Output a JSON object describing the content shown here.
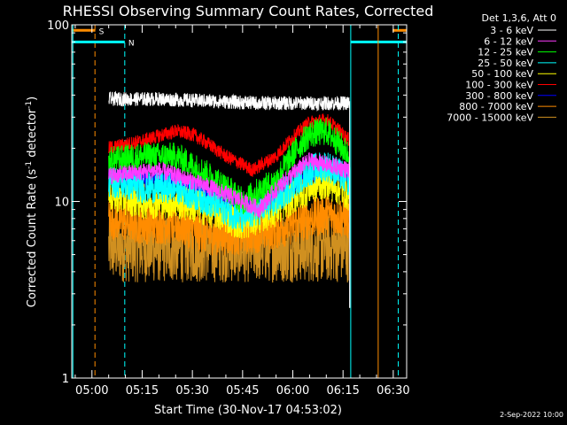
{
  "chart_data": {
    "type": "line",
    "title": "RHESSI Observing Summary Count Rates, Corrected",
    "xlabel": "Start Time (30-Nov-17 04:53:02)",
    "ylabel_main": "Corrected Count Rate (s",
    "ylabel_exp1": "-1",
    "ylabel_mid": " detector",
    "ylabel_exp2": "-1",
    "ylabel_end": ")",
    "ylog": true,
    "ylim": [
      1,
      100
    ],
    "xlim_minutes": [
      -6.03,
      94.0
    ],
    "y_ticks": [
      "1",
      "10",
      "100"
    ],
    "x_ticks": [
      {
        "label": "05:00",
        "t": 0
      },
      {
        "label": "05:15",
        "t": 15
      },
      {
        "label": "05:30",
        "t": 30
      },
      {
        "label": "05:45",
        "t": 45
      },
      {
        "label": "06:00",
        "t": 60
      },
      {
        "label": "06:15",
        "t": 75
      },
      {
        "label": "06:30",
        "t": 90
      }
    ],
    "legend_header": "Det 1,3,6, Att 0",
    "timestamp": "2-Sep-2022 10:00",
    "data_start_min": 5.0,
    "data_end_min": 77.5,
    "series": [
      {
        "name": "3 - 6 keV",
        "color": "#ffffff",
        "t": [
          5,
          20,
          35,
          50,
          65,
          77
        ],
        "y": [
          38,
          38,
          37,
          36,
          36,
          36
        ],
        "noise": 0.04
      },
      {
        "name": "6 - 12 keV",
        "color": "#ff3cff",
        "t": [
          5,
          20,
          35,
          50,
          65,
          77
        ],
        "y": [
          14,
          15,
          12,
          9,
          17,
          15
        ],
        "noise": 0.05
      },
      {
        "name": "12 - 25 keV",
        "color": "#00ff00",
        "t": [
          5,
          15,
          25,
          35,
          45,
          55,
          65,
          70,
          77
        ],
        "y": [
          17,
          18,
          18,
          14,
          10,
          13,
          24,
          25,
          18
        ],
        "noise": 0.08
      },
      {
        "name": "25 - 50 keV",
        "color": "#00ffff",
        "t": [
          5,
          15,
          25,
          35,
          45,
          55,
          65,
          70,
          77
        ],
        "y": [
          13,
          12,
          12,
          10,
          8,
          10,
          15,
          16,
          13
        ],
        "noise": 0.09
      },
      {
        "name": "50 - 100 keV",
        "color": "#ffff00",
        "t": [
          5,
          15,
          25,
          35,
          45,
          55,
          65,
          70,
          77
        ],
        "y": [
          11,
          10,
          10,
          9,
          7.5,
          9,
          12,
          13,
          11
        ],
        "noise": 0.1
      },
      {
        "name": "100 - 300 keV",
        "color": "#ff0000",
        "t": [
          5,
          15,
          25,
          30,
          40,
          48,
          55,
          65,
          70,
          77
        ],
        "y": [
          20,
          22,
          25,
          24,
          18,
          15,
          18,
          28,
          29,
          22
        ],
        "noise": 0.04
      },
      {
        "name": "300 - 800 keV",
        "color": "#0000ff",
        "t": [
          5,
          15,
          25,
          35,
          45,
          55,
          65,
          70,
          77
        ],
        "y": [
          14,
          13,
          13,
          11,
          9,
          10,
          14,
          15,
          14
        ],
        "noise": 0.05
      },
      {
        "name": "800 - 7000 keV",
        "color": "#ff8c00",
        "t": [
          5,
          15,
          25,
          35,
          45,
          55,
          65,
          70,
          77
        ],
        "y": [
          8,
          7.5,
          7.5,
          6.5,
          6.5,
          7,
          8,
          8.5,
          8
        ],
        "noise": 0.12
      },
      {
        "name": "7000 - 15000 keV",
        "color": "#d09020",
        "t": [
          5,
          77
        ],
        "y": [
          5.5,
          5.5
        ],
        "noise": 0.2
      }
    ],
    "flags": [
      {
        "label": "S",
        "color": "#ff8c00",
        "t_start": -6.03,
        "t_end": 1.0,
        "y": 93,
        "vline": 0.9,
        "vline_dash": true
      },
      {
        "label": "N",
        "color": "#00ffff",
        "t_start": -6.03,
        "t_end": 9.8,
        "y": 80,
        "vline": 9.8,
        "vline_dash": true
      },
      {
        "label": "",
        "color": "#00ffff",
        "t_start": 77.3,
        "t_end": 94.0,
        "y": 80,
        "vline": 77.3,
        "vline_dash": false
      },
      {
        "label": "",
        "color": "#ff8c00",
        "t_start": 89.8,
        "t_end": 94.0,
        "y": 93,
        "vline": 85.5,
        "vline_dash": false
      }
    ],
    "extra_vlines": [
      {
        "t": -5.7,
        "color": "#00ffff",
        "dash": false
      },
      {
        "t": 91.5,
        "color": "#00ffff",
        "dash": true
      }
    ],
    "grid": false,
    "legend_placement": "right"
  }
}
